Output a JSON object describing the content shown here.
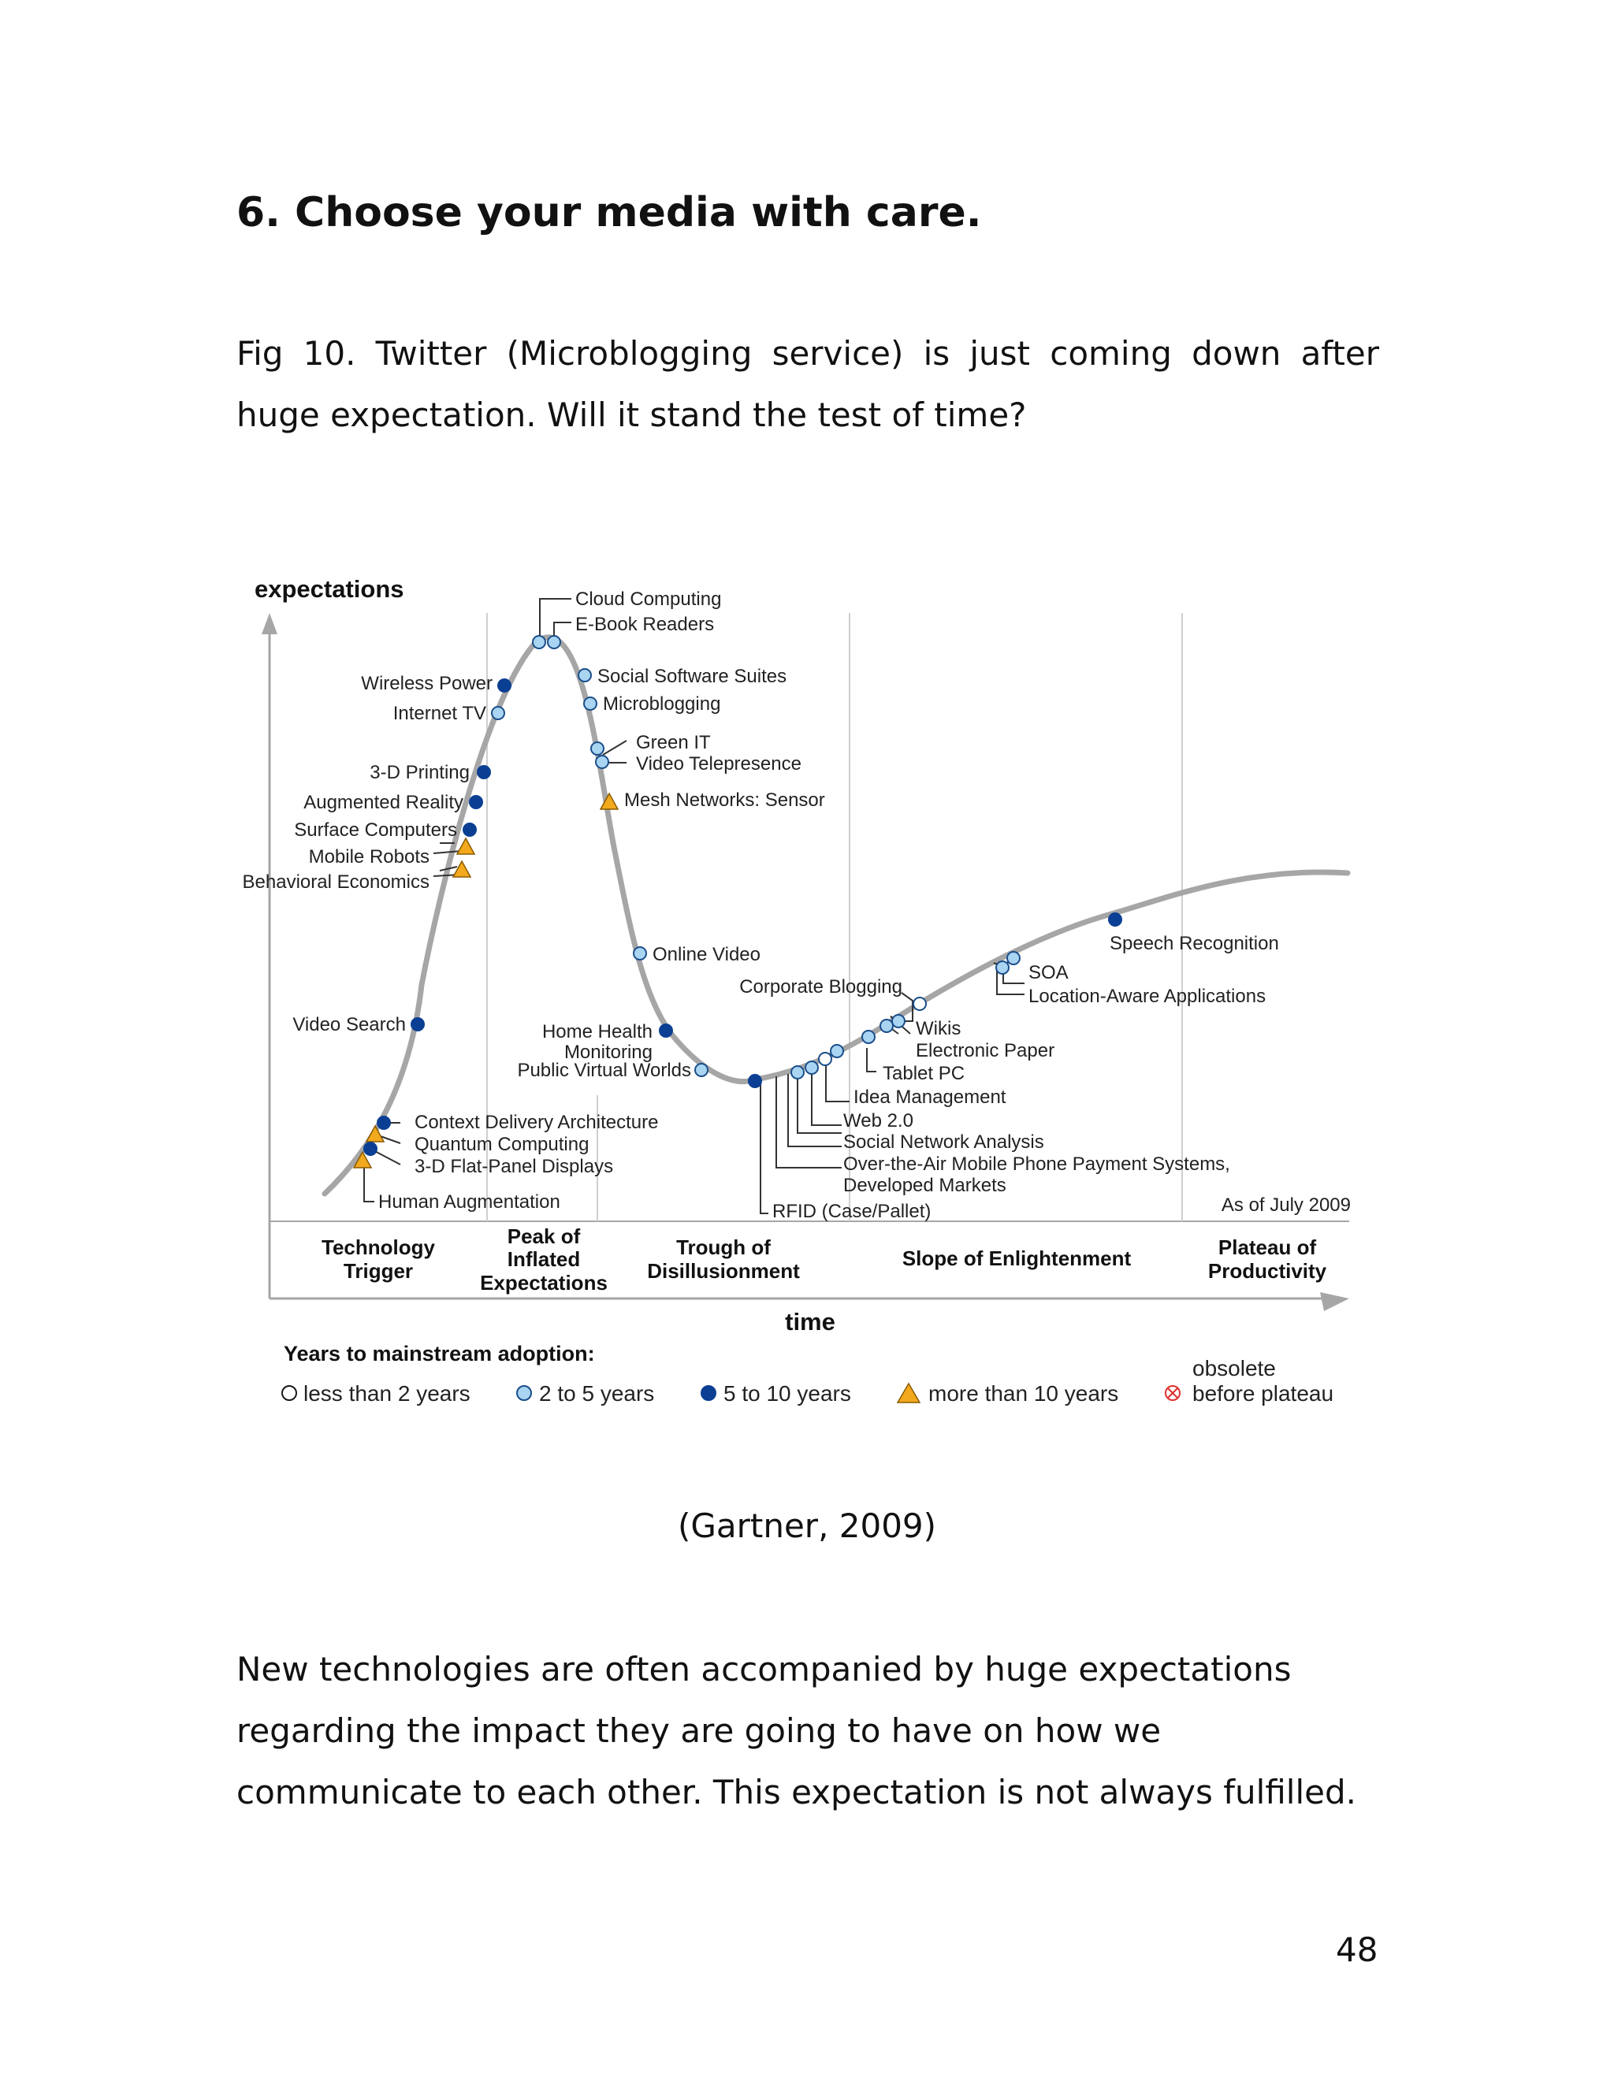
{
  "heading": "6. Choose your media with care.",
  "caption": "Fig 10. Twitter (Microblogging service) is just coming down after huge expectation. Will it stand the test of time?",
  "figure": {
    "y_axis_label": "expectations",
    "x_axis_label": "time",
    "as_of": "As of July 2009",
    "phases": [
      {
        "lines": [
          "Technology",
          "Trigger"
        ]
      },
      {
        "lines": [
          "Peak of",
          "Inflated",
          "Expectations"
        ]
      },
      {
        "lines": [
          "Trough of",
          "Disillusionment"
        ]
      },
      {
        "lines": [
          "Slope of Enlightenment"
        ]
      },
      {
        "lines": [
          "Plateau of",
          "Productivity"
        ]
      }
    ],
    "technologies": [
      {
        "name": "Cloud Computing",
        "category": "2-5"
      },
      {
        "name": "E-Book Readers",
        "category": "2-5"
      },
      {
        "name": "Wireless Power",
        "category": "5-10"
      },
      {
        "name": "Internet TV",
        "category": "2-5"
      },
      {
        "name": "Social Software Suites",
        "category": "2-5"
      },
      {
        "name": "Microblogging",
        "category": "2-5"
      },
      {
        "name": "Green IT",
        "category": "2-5"
      },
      {
        "name": "Video Telepresence",
        "category": "2-5"
      },
      {
        "name": "Mesh Networks: Sensor",
        "category": ">10"
      },
      {
        "name": "3-D Printing",
        "category": "5-10"
      },
      {
        "name": "Augmented Reality",
        "category": "5-10"
      },
      {
        "name": "Surface Computers",
        "category": "5-10"
      },
      {
        "name": "Mobile Robots",
        "category": ">10"
      },
      {
        "name": "Behavioral Economics",
        "category": ">10"
      },
      {
        "name": "Online Video",
        "category": "2-5"
      },
      {
        "name": "Corporate Blogging",
        "category": "<2"
      },
      {
        "name": "Speech Recognition",
        "category": "5-10"
      },
      {
        "name": "SOA",
        "category": "2-5"
      },
      {
        "name": "Location-Aware Applications",
        "category": "2-5"
      },
      {
        "name": "Video Search",
        "category": "5-10"
      },
      {
        "name": "Home Health Monitoring",
        "category": "5-10"
      },
      {
        "name": "Public Virtual Worlds",
        "category": "2-5"
      },
      {
        "name": "Wikis",
        "category": "2-5"
      },
      {
        "name": "Electronic Paper",
        "category": "2-5"
      },
      {
        "name": "Tablet PC",
        "category": "2-5"
      },
      {
        "name": "Idea Management",
        "category": "2-5"
      },
      {
        "name": "Web 2.0",
        "category": "<2"
      },
      {
        "name": "Social Network Analysis",
        "category": "2-5"
      },
      {
        "name": "Over-the-Air Mobile Phone Payment Systems, Developed Markets",
        "category": "2-5"
      },
      {
        "name": "RFID (Case/Pallet)",
        "category": "5-10"
      },
      {
        "name": "Context Delivery Architecture",
        "category": "5-10"
      },
      {
        "name": "Quantum Computing",
        "category": ">10"
      },
      {
        "name": "3-D Flat-Panel Displays",
        "category": "5-10"
      },
      {
        "name": "Human Augmentation",
        "category": ">10"
      }
    ],
    "legend": {
      "title": "Years to mainstream adoption:",
      "items": [
        {
          "label": "less than 2 years",
          "marker": "open-circle"
        },
        {
          "label": "2 to 5 years",
          "marker": "light-blue-circle"
        },
        {
          "label": "5 to 10 years",
          "marker": "dark-blue-circle"
        },
        {
          "label": "more than 10 years",
          "marker": "orange-triangle"
        }
      ],
      "obsolete_lines": [
        "obsolete",
        "before plateau"
      ]
    },
    "colors": {
      "curve": "#a6a6a6",
      "light_blue": "#a9d4f2",
      "dark_blue": "#0b3f93",
      "orange": "#f2a91d",
      "obsolete": "#e0322f"
    }
  },
  "citation": "(Gartner, 2009)",
  "body_text": "New technologies are often accompanied by huge expectations regarding the impact they are going to have on how we communicate to each other. This expectation is not always fulfilled.",
  "page_number": "48"
}
